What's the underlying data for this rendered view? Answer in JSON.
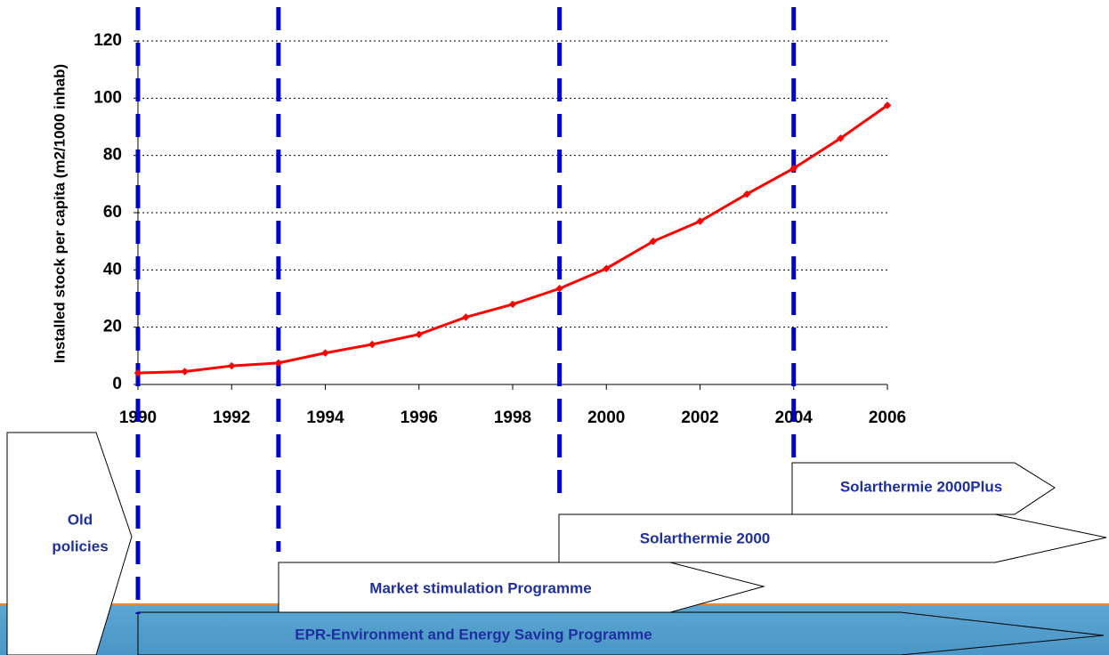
{
  "chart_data": {
    "type": "line",
    "y_label": "Installed stock per capita (m2/1000 inhab)",
    "x": [
      1990,
      1991,
      1992,
      1993,
      1994,
      1995,
      1996,
      1997,
      1998,
      1999,
      2000,
      2001,
      2002,
      2003,
      2004,
      2005,
      2006
    ],
    "series": [
      {
        "name": "Installed stock",
        "color": "#ff0000",
        "values": [
          4,
          4.5,
          6.5,
          7.5,
          11,
          14,
          17.5,
          23.5,
          28,
          33.5,
          40.5,
          50,
          57,
          66.5,
          75.5,
          86,
          97.5
        ]
      }
    ],
    "xlim": [
      1990,
      2006
    ],
    "xticks": [
      1990,
      1992,
      1994,
      1996,
      1998,
      2000,
      2002,
      2004,
      2006
    ],
    "ylim": [
      0,
      120
    ],
    "yticks": [
      0,
      20,
      40,
      60,
      80,
      100,
      120
    ],
    "grid": true,
    "policy_lines": [
      1990,
      1993,
      1999,
      2004
    ],
    "policy_line_color": "#0000cc",
    "policies": [
      {
        "label": [
          "Old",
          "policies"
        ]
      },
      {
        "label": [
          "Solarthermie 2000Plus"
        ]
      },
      {
        "label": [
          "Solarthermie 2000"
        ]
      },
      {
        "label": [
          "Market stimulation Programme"
        ]
      },
      {
        "label": [
          "EPR-Environment and Energy Saving Programme"
        ]
      }
    ]
  }
}
